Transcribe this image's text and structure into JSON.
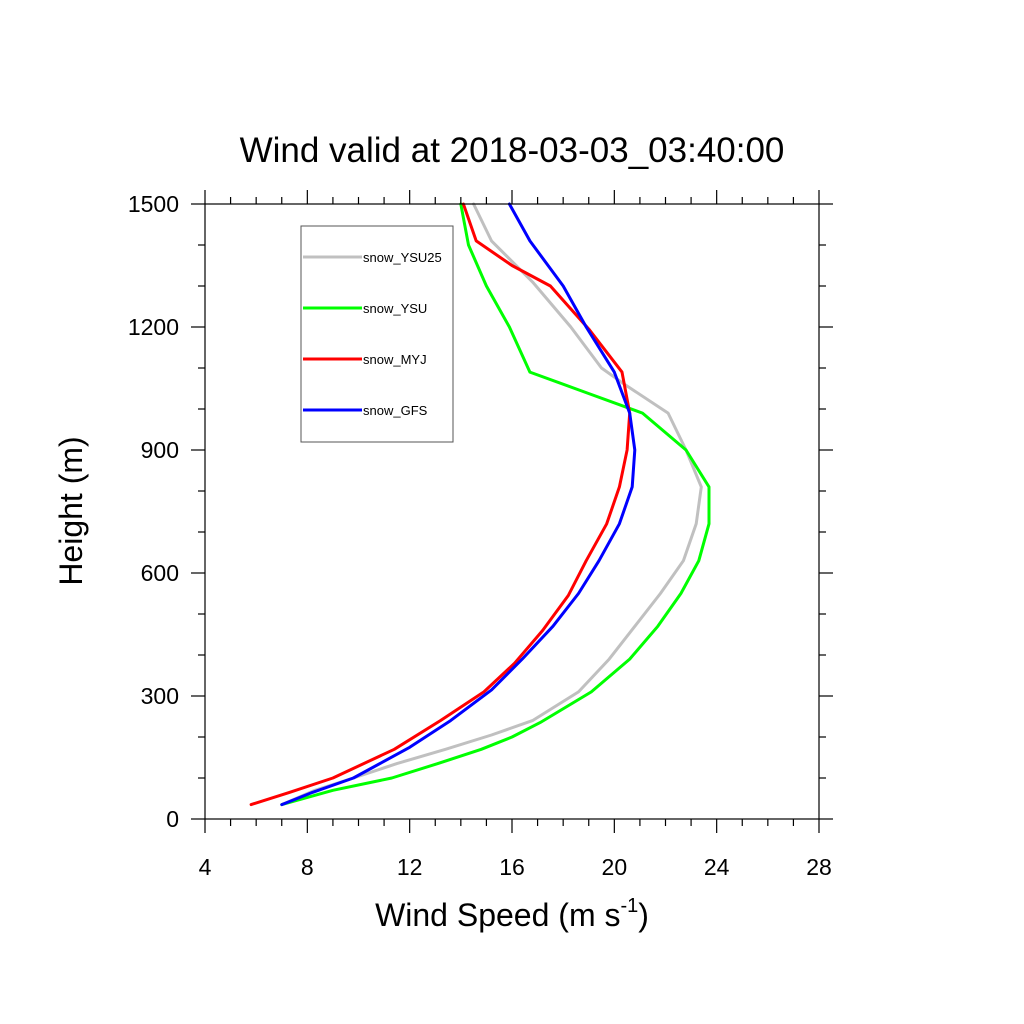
{
  "chart_data": {
    "type": "line",
    "title": "Wind valid at 2018-03-03_03:40:00",
    "xlabel": "Wind Speed (m s",
    "xlabel_sup": "-1",
    "xlabel_close": ")",
    "ylabel": "Height (m)",
    "xlim": [
      4,
      28
    ],
    "ylim": [
      0,
      1500
    ],
    "xticks": [
      4,
      8,
      12,
      16,
      20,
      24,
      28
    ],
    "yticks": [
      0,
      300,
      600,
      900,
      1200,
      1500
    ],
    "x_minor_step": 1,
    "y_minor_step": 100,
    "legend_position": "top-left",
    "grid": false,
    "series": [
      {
        "name": "snow_YSU25",
        "color": "#c0c0c0",
        "points": [
          [
            7.0,
            35
          ],
          [
            8.3,
            70
          ],
          [
            9.8,
            100
          ],
          [
            11.5,
            135
          ],
          [
            13.4,
            170
          ],
          [
            15.2,
            205
          ],
          [
            16.8,
            240
          ],
          [
            18.6,
            310
          ],
          [
            19.8,
            390
          ],
          [
            20.8,
            470
          ],
          [
            21.8,
            550
          ],
          [
            22.7,
            630
          ],
          [
            23.2,
            720
          ],
          [
            23.4,
            810
          ],
          [
            22.8,
            900
          ],
          [
            22.1,
            990
          ],
          [
            20.4,
            1060
          ],
          [
            19.5,
            1100
          ],
          [
            18.3,
            1200
          ],
          [
            16.8,
            1310
          ],
          [
            15.2,
            1410
          ],
          [
            14.5,
            1500
          ]
        ]
      },
      {
        "name": "snow_YSU",
        "color": "#00ff00",
        "points": [
          [
            7.0,
            35
          ],
          [
            9.0,
            70
          ],
          [
            11.3,
            100
          ],
          [
            13.1,
            135
          ],
          [
            14.8,
            170
          ],
          [
            16.0,
            200
          ],
          [
            17.1,
            235
          ],
          [
            19.1,
            310
          ],
          [
            20.6,
            390
          ],
          [
            21.7,
            470
          ],
          [
            22.6,
            550
          ],
          [
            23.3,
            630
          ],
          [
            23.7,
            720
          ],
          [
            23.7,
            810
          ],
          [
            22.8,
            900
          ],
          [
            21.1,
            990
          ],
          [
            18.9,
            1040
          ],
          [
            16.7,
            1090
          ],
          [
            15.9,
            1200
          ],
          [
            15.0,
            1300
          ],
          [
            14.3,
            1400
          ],
          [
            14.0,
            1500
          ]
        ]
      },
      {
        "name": "snow_MYJ",
        "color": "#ff0000",
        "points": [
          [
            5.8,
            35
          ],
          [
            7.3,
            65
          ],
          [
            9.0,
            100
          ],
          [
            11.4,
            170
          ],
          [
            13.2,
            240
          ],
          [
            14.9,
            310
          ],
          [
            16.1,
            380
          ],
          [
            17.2,
            460
          ],
          [
            18.2,
            545
          ],
          [
            18.9,
            630
          ],
          [
            19.7,
            720
          ],
          [
            20.2,
            810
          ],
          [
            20.5,
            900
          ],
          [
            20.6,
            990
          ],
          [
            20.3,
            1090
          ],
          [
            19.0,
            1195
          ],
          [
            17.5,
            1300
          ],
          [
            16.0,
            1350
          ],
          [
            14.6,
            1410
          ],
          [
            14.1,
            1500
          ]
        ]
      },
      {
        "name": "snow_GFS",
        "color": "#0000ff",
        "points": [
          [
            7.0,
            35
          ],
          [
            8.2,
            65
          ],
          [
            9.8,
            100
          ],
          [
            12.0,
            175
          ],
          [
            13.6,
            240
          ],
          [
            15.2,
            315
          ],
          [
            16.4,
            390
          ],
          [
            17.6,
            470
          ],
          [
            18.6,
            550
          ],
          [
            19.4,
            630
          ],
          [
            20.2,
            720
          ],
          [
            20.7,
            810
          ],
          [
            20.8,
            900
          ],
          [
            20.6,
            990
          ],
          [
            20.0,
            1090
          ],
          [
            18.9,
            1200
          ],
          [
            18.0,
            1300
          ],
          [
            16.7,
            1410
          ],
          [
            15.9,
            1500
          ]
        ]
      }
    ]
  }
}
